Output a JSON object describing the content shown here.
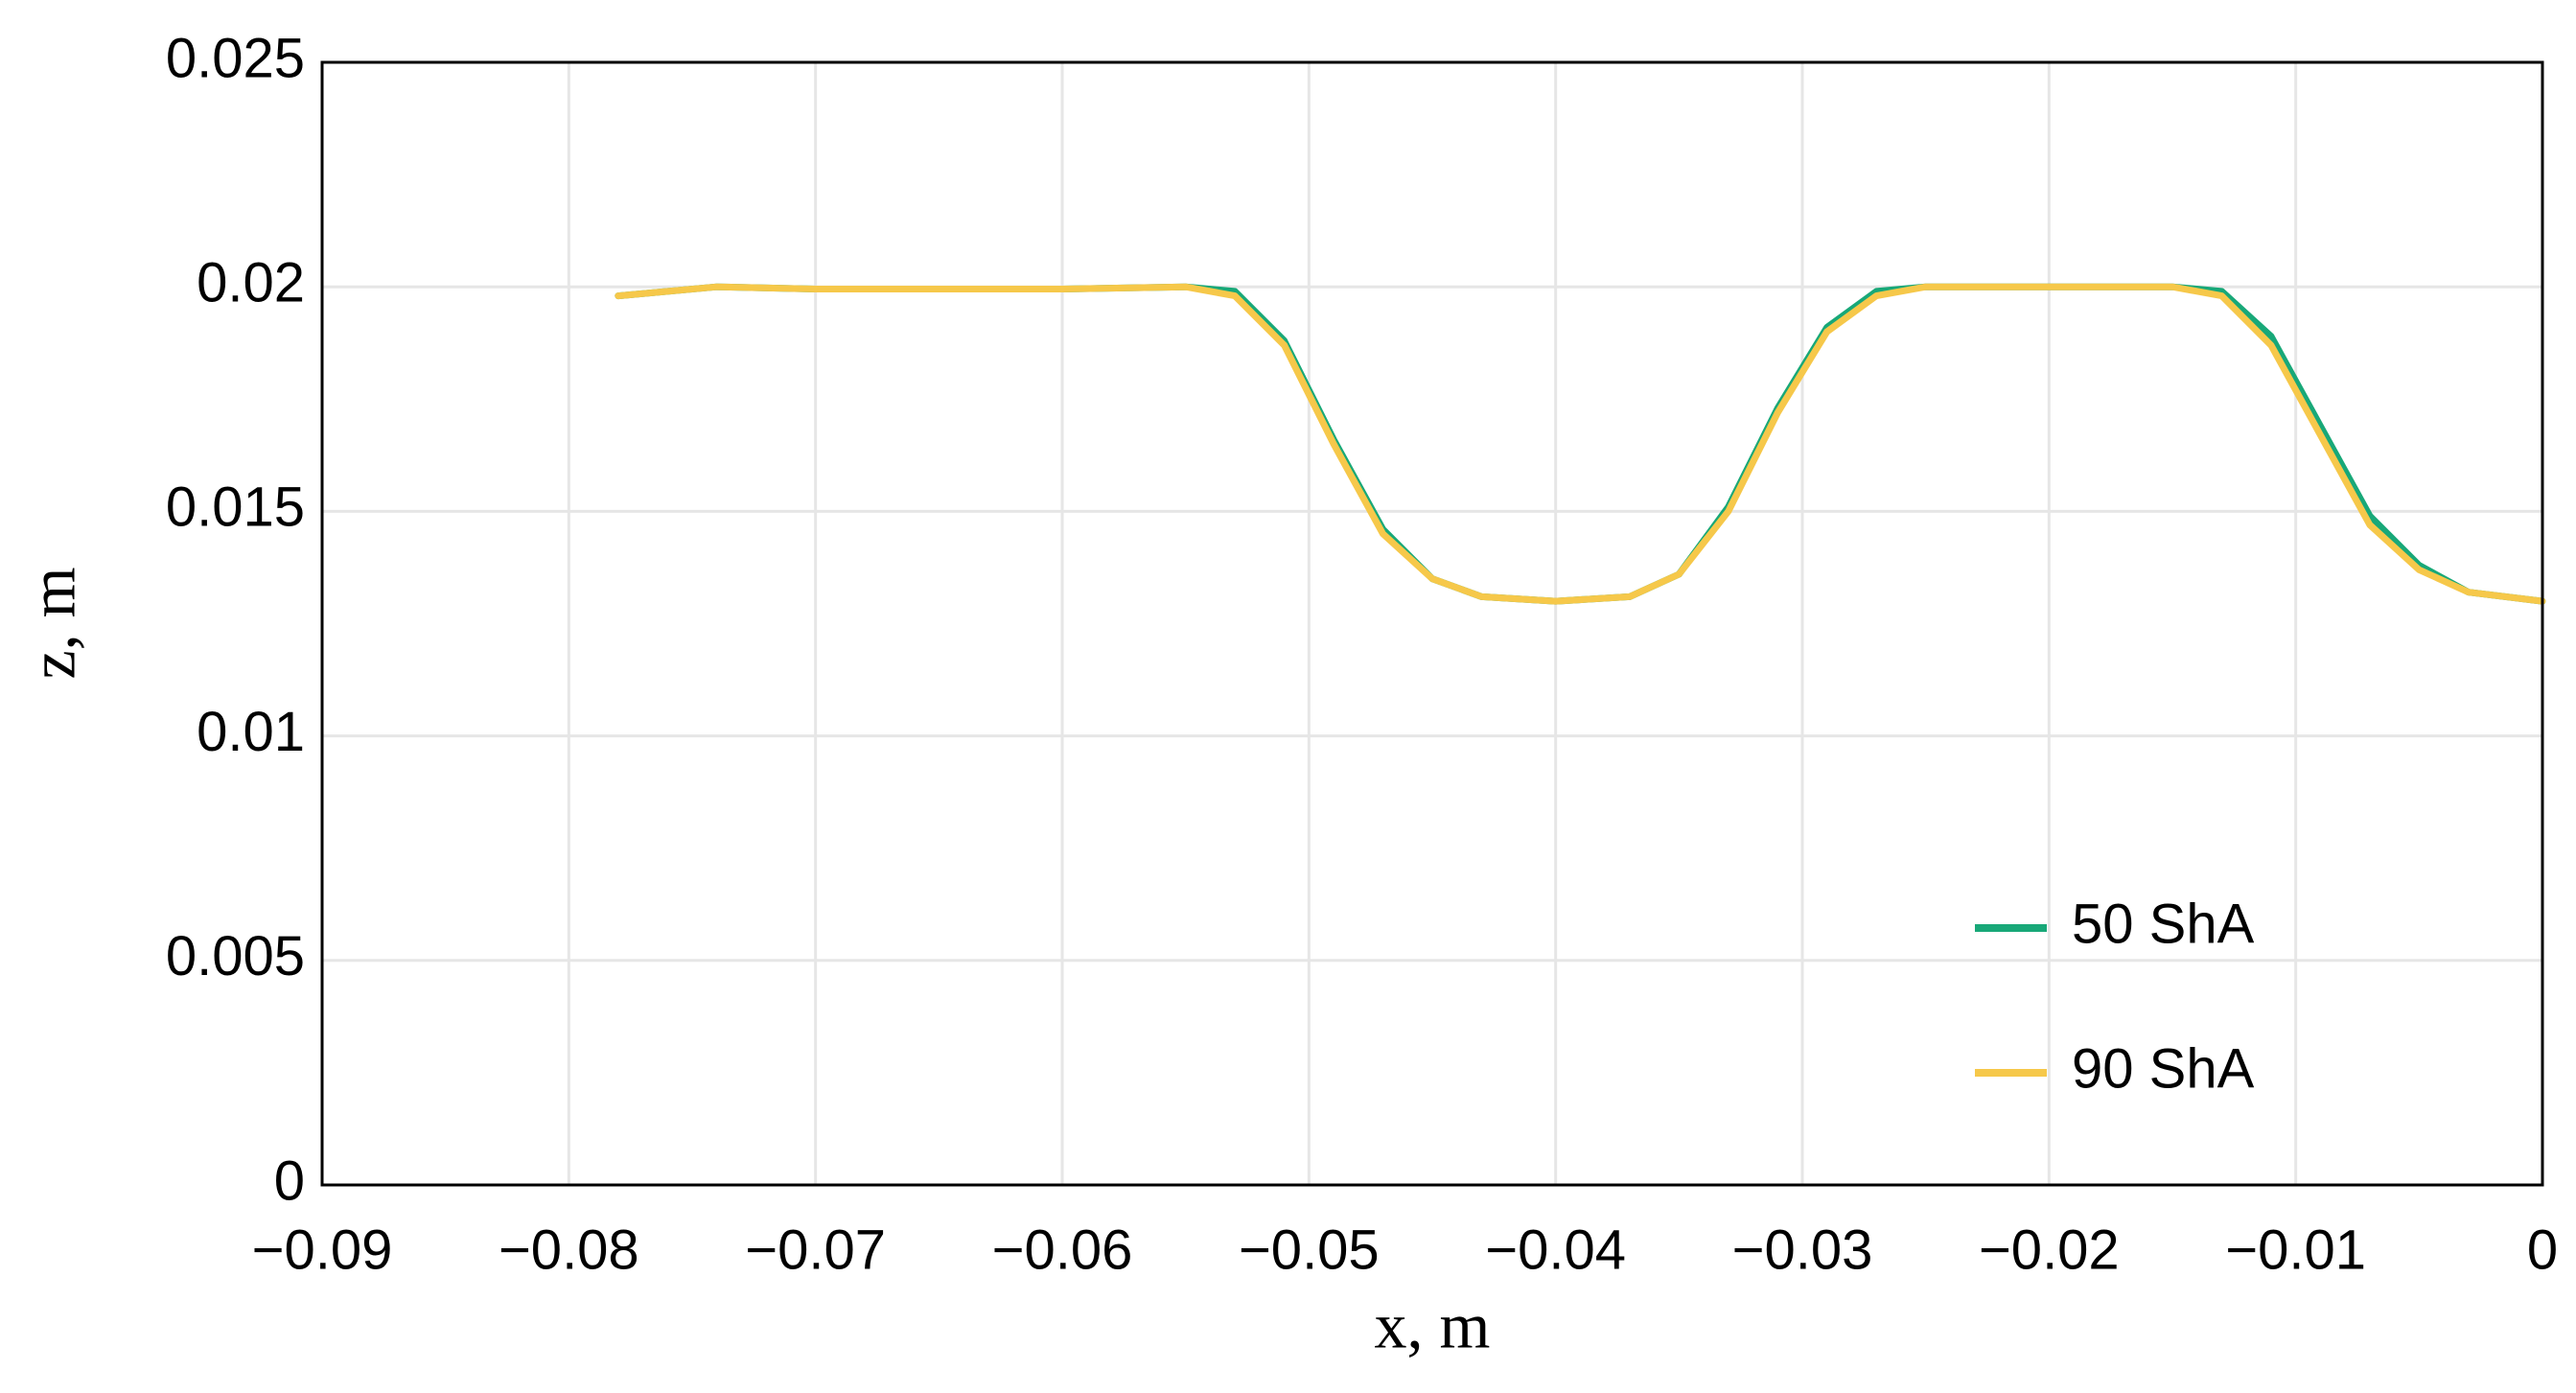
{
  "chart_data": {
    "type": "line",
    "x_label": "x, m",
    "y_label": "z, m",
    "x": [
      -0.078,
      -0.074,
      -0.07,
      -0.06,
      -0.055,
      -0.053,
      -0.051,
      -0.049,
      -0.047,
      -0.045,
      -0.043,
      -0.04,
      -0.037,
      -0.035,
      -0.033,
      -0.031,
      -0.029,
      -0.027,
      -0.025,
      -0.02,
      -0.015,
      -0.013,
      -0.011,
      -0.009,
      -0.007,
      -0.005,
      -0.003,
      0
    ],
    "series": [
      {
        "name": "50 ShA",
        "color": "#18a878",
        "values": [
          0.0198,
          0.02,
          0.01995,
          0.01995,
          0.02,
          0.0199,
          0.0188,
          0.0166,
          0.0146,
          0.0135,
          0.0131,
          0.013,
          0.0131,
          0.0136,
          0.0151,
          0.0173,
          0.0191,
          0.0199,
          0.02,
          0.02,
          0.02,
          0.0199,
          0.0189,
          0.0169,
          0.0149,
          0.0138,
          0.0132,
          0.013
        ]
      },
      {
        "name": "90 ShA",
        "color": "#f6c84a",
        "values": [
          0.0198,
          0.02,
          0.01995,
          0.01995,
          0.02,
          0.0198,
          0.0187,
          0.0165,
          0.0145,
          0.0135,
          0.0131,
          0.013,
          0.0131,
          0.0136,
          0.015,
          0.0172,
          0.019,
          0.0198,
          0.02,
          0.02,
          0.02,
          0.0198,
          0.0187,
          0.0167,
          0.0147,
          0.0137,
          0.0132,
          0.013
        ]
      }
    ],
    "xlim": [
      -0.09,
      0
    ],
    "xticks": [
      {
        "value": -0.09,
        "label": "−0.09"
      },
      {
        "value": -0.08,
        "label": "−0.08"
      },
      {
        "value": -0.07,
        "label": "−0.07"
      },
      {
        "value": -0.06,
        "label": "−0.06"
      },
      {
        "value": -0.05,
        "label": "−0.05"
      },
      {
        "value": -0.04,
        "label": "−0.04"
      },
      {
        "value": -0.03,
        "label": "−0.03"
      },
      {
        "value": -0.02,
        "label": "−0.02"
      },
      {
        "value": -0.01,
        "label": "−0.01"
      },
      0
    ],
    "ylim": [
      0,
      0.025
    ],
    "yticks": [
      0,
      0.005,
      0.01,
      0.015,
      0.02,
      0.025
    ],
    "grid": true
  }
}
